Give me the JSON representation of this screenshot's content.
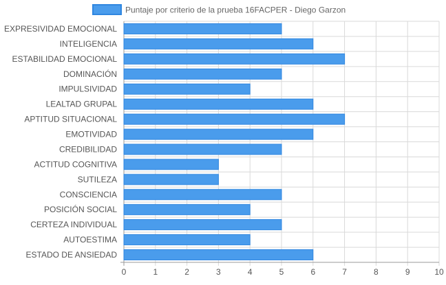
{
  "chart_data": {
    "type": "bar",
    "orientation": "horizontal",
    "legend": {
      "label": "Puntaje por criterio de la prueba 16FACPER - Diego Garzon",
      "placement": "top-center"
    },
    "categories": [
      "EXPRESIVIDAD EMOCIONAL",
      "INTELIGENCIA",
      "ESTABILIDAD EMOCIONAL",
      "DOMINACIÓN",
      "IMPULSIVIDAD",
      "LEALTAD GRUPAL",
      "APTITUD SITUACIONAL",
      "EMOTIVIDAD",
      "CREDIBILIDAD",
      "ACTITUD COGNITIVA",
      "SUTILEZA",
      "CONSCIENCIA",
      "POSICIÓN SOCIAL",
      "CERTEZA INDIVIDUAL",
      "AUTOESTIMA",
      "ESTADO DE ANSIEDAD"
    ],
    "series": [
      {
        "name": "Puntaje por criterio de la prueba 16FACPER - Diego Garzon",
        "values": [
          5,
          6,
          7,
          5,
          4,
          6,
          7,
          6,
          5,
          3,
          3,
          5,
          4,
          5,
          4,
          6
        ]
      }
    ],
    "xlim": [
      0,
      10
    ],
    "xticks": [
      0,
      1,
      2,
      3,
      4,
      5,
      6,
      7,
      8,
      9,
      10
    ],
    "grid": true,
    "colors": {
      "bar_fill": "#4a9cec",
      "bar_stroke": "#2f86e0",
      "grid": "#d9d9d9",
      "axis": "#999999",
      "text": "#555555"
    }
  }
}
